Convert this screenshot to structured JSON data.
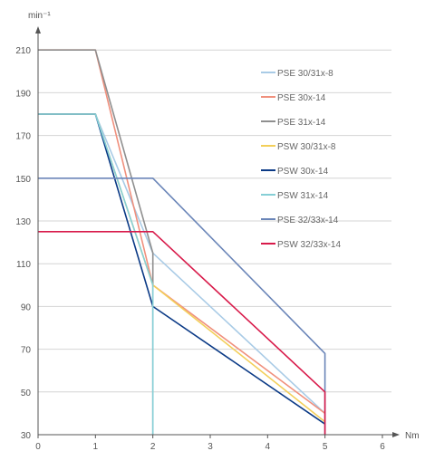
{
  "chart_data": {
    "type": "line",
    "title": "",
    "xlabel": "Nm",
    "ylabel": "min⁻¹",
    "xlim": [
      0,
      6
    ],
    "ylim": [
      30,
      220
    ],
    "x_ticks": [
      "0",
      "1",
      "2",
      "3",
      "4",
      "5",
      "6"
    ],
    "y_ticks": [
      "30",
      "50",
      "70",
      "90",
      "110",
      "130",
      "150",
      "170",
      "190",
      "210"
    ],
    "grid": "horizontal",
    "legend_position": "right",
    "series": [
      {
        "name": "PSE 30/31x-8",
        "color": "#a9cbe6",
        "points": [
          [
            0,
            180
          ],
          [
            1,
            180
          ],
          [
            2,
            115
          ],
          [
            5,
            40
          ]
        ]
      },
      {
        "name": "PSE 30x-14",
        "color": "#f0907d",
        "points": [
          [
            0,
            210
          ],
          [
            1,
            210
          ],
          [
            2,
            100
          ],
          [
            5,
            40
          ]
        ]
      },
      {
        "name": "PSE 31x-14",
        "color": "#8f8f8f",
        "points": [
          [
            0,
            210
          ],
          [
            1,
            210
          ],
          [
            2,
            115
          ],
          [
            2,
            30
          ]
        ]
      },
      {
        "name": "PSW 30/31x-8",
        "color": "#f3cf5a",
        "points": [
          [
            0,
            180
          ],
          [
            1,
            180
          ],
          [
            2,
            100
          ],
          [
            5,
            36
          ]
        ]
      },
      {
        "name": "PSW 30x-14",
        "color": "#0b3a86",
        "points": [
          [
            0,
            180
          ],
          [
            1,
            180
          ],
          [
            2,
            90
          ],
          [
            5,
            35
          ]
        ]
      },
      {
        "name": "PSW 31x-14",
        "color": "#86cfd6",
        "points": [
          [
            0,
            180
          ],
          [
            1,
            180
          ],
          [
            2,
            100
          ],
          [
            2,
            30
          ]
        ]
      },
      {
        "name": "PSE 32/33x-14",
        "color": "#6a85b8",
        "points": [
          [
            0,
            150
          ],
          [
            2,
            150
          ],
          [
            5,
            68
          ],
          [
            5,
            30
          ]
        ]
      },
      {
        "name": "PSW 32/33x-14",
        "color": "#d81a4a",
        "points": [
          [
            0,
            125
          ],
          [
            2,
            125
          ],
          [
            5,
            50
          ],
          [
            5,
            30
          ]
        ]
      }
    ]
  }
}
